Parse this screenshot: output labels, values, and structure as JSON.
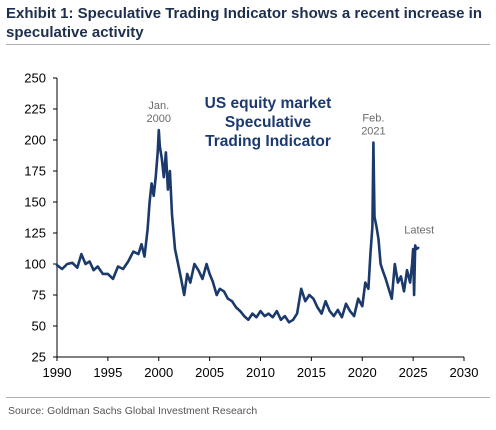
{
  "header": {
    "title": "Exhibit 1: Speculative Trading Indicator shows a recent increase in speculative activity"
  },
  "footer": {
    "source": "Source: Goldman Sachs Global Investment Research"
  },
  "colors": {
    "line": "#1b3a6b",
    "title": "#1d2f4d",
    "annotation": "#6b6b6b"
  },
  "chart_data": {
    "type": "line",
    "title_lines": [
      "US equity market",
      "Speculative",
      "Trading Indicator"
    ],
    "xlabel": "",
    "ylabel": "",
    "xlim": [
      1990,
      2030
    ],
    "ylim": [
      25,
      250
    ],
    "x_ticks": [
      1990,
      1995,
      2000,
      2005,
      2010,
      2015,
      2020,
      2025,
      2030
    ],
    "y_ticks": [
      25,
      50,
      75,
      100,
      125,
      150,
      175,
      200,
      225,
      250
    ],
    "grid": false,
    "legend": "none",
    "annotations": [
      {
        "lines": [
          "Jan.",
          "2000"
        ],
        "x": 2000.0,
        "y": 208
      },
      {
        "lines": [
          "Feb.",
          "2021"
        ],
        "x": 2021.1,
        "y": 198
      },
      {
        "lines": [
          "Latest"
        ],
        "x": 2025.5,
        "y": 115
      }
    ],
    "series": [
      {
        "x": [
          1990.0,
          1990.5,
          1991.0,
          1991.5,
          1992.0,
          1992.4,
          1992.8,
          1993.2,
          1993.6,
          1994.0,
          1994.5,
          1995.0,
          1995.5,
          1996.0,
          1996.5,
          1997.0,
          1997.5,
          1998.0,
          1998.3,
          1998.6,
          1998.9,
          1999.1,
          1999.3,
          1999.5,
          1999.7,
          1999.9,
          2000.0,
          2000.1,
          2000.3,
          2000.5,
          2000.7,
          2000.9,
          2001.1,
          2001.3,
          2001.6,
          2001.9,
          2002.2,
          2002.5,
          2002.8,
          2003.1,
          2003.5,
          2003.9,
          2004.3,
          2004.7,
          2005.0,
          2005.3,
          2005.7,
          2006.0,
          2006.4,
          2006.8,
          2007.2,
          2007.6,
          2008.0,
          2008.4,
          2008.8,
          2009.2,
          2009.6,
          2010.0,
          2010.4,
          2010.8,
          2011.2,
          2011.6,
          2012.0,
          2012.4,
          2012.8,
          2013.2,
          2013.6,
          2014.0,
          2014.4,
          2014.8,
          2015.2,
          2015.6,
          2016.0,
          2016.4,
          2016.8,
          2017.2,
          2017.6,
          2018.0,
          2018.4,
          2018.8,
          2019.2,
          2019.6,
          2020.0,
          2020.3,
          2020.6,
          2020.8,
          2021.0,
          2021.1,
          2021.2,
          2021.4,
          2021.6,
          2021.8,
          2022.0,
          2022.3,
          2022.6,
          2022.9,
          2023.2,
          2023.5,
          2023.8,
          2024.1,
          2024.4,
          2024.7,
          2024.9,
          2025.0,
          2025.1,
          2025.2,
          2025.3,
          2025.5
        ],
        "y": [
          99,
          96,
          100,
          101,
          97,
          108,
          100,
          102,
          95,
          98,
          92,
          92,
          88,
          98,
          96,
          102,
          110,
          108,
          116,
          106,
          128,
          150,
          165,
          155,
          170,
          190,
          208,
          195,
          185,
          170,
          190,
          160,
          175,
          140,
          112,
          100,
          88,
          75,
          92,
          85,
          100,
          95,
          88,
          100,
          92,
          86,
          75,
          80,
          78,
          72,
          70,
          65,
          62,
          58,
          55,
          60,
          57,
          62,
          58,
          60,
          57,
          62,
          55,
          58,
          53,
          55,
          60,
          80,
          70,
          75,
          72,
          65,
          60,
          70,
          62,
          58,
          63,
          57,
          68,
          62,
          58,
          72,
          66,
          85,
          80,
          108,
          130,
          198,
          138,
          130,
          120,
          100,
          95,
          88,
          80,
          72,
          100,
          85,
          90,
          78,
          95,
          85,
          100,
          112,
          75,
          115,
          112,
          113
        ]
      }
    ]
  }
}
